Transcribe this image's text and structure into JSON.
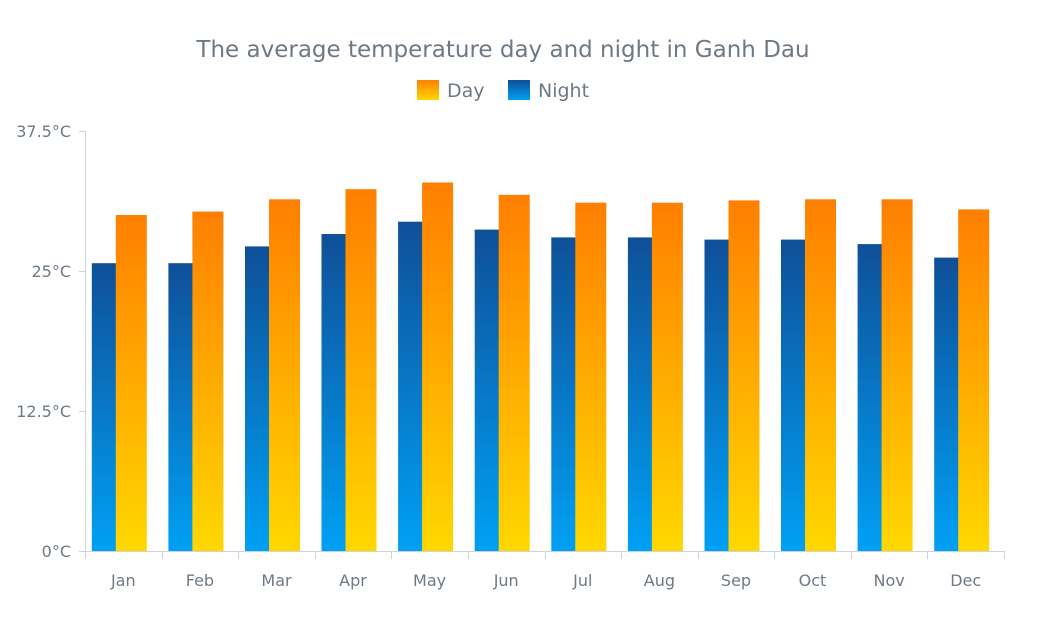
{
  "chart_data": {
    "type": "bar",
    "title": "The average temperature day and night in Ganh Dau",
    "categories": [
      "Jan",
      "Feb",
      "Mar",
      "Apr",
      "May",
      "Jun",
      "Jul",
      "Aug",
      "Sep",
      "Oct",
      "Nov",
      "Dec"
    ],
    "series": [
      {
        "name": "Day",
        "values": [
          30.0,
          30.3,
          31.4,
          32.3,
          32.9,
          31.8,
          31.1,
          31.1,
          31.3,
          31.4,
          31.4,
          30.5
        ],
        "color_top": "#ff7f00",
        "color_bottom": "#ffd700"
      },
      {
        "name": "Night",
        "values": [
          25.7,
          25.7,
          27.2,
          28.3,
          29.4,
          28.7,
          28.0,
          28.0,
          27.8,
          27.8,
          27.4,
          26.2
        ],
        "color_top": "#0f4f98",
        "color_bottom": "#00a0f4"
      }
    ],
    "y_ticks": [
      "0°C",
      "12.5°C",
      "25°C",
      "37.5°C"
    ],
    "ylim": [
      0,
      37.5
    ],
    "legend_position": "top-center",
    "grid": false
  }
}
